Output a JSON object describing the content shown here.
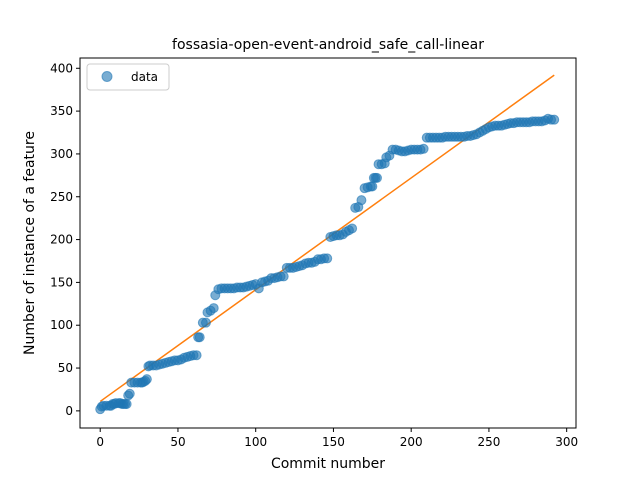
{
  "chart_data": {
    "type": "scatter",
    "title": "fossasia-open-event-android_safe_call-linear",
    "xlabel": "Commit number",
    "ylabel": "Number of instance of a feature",
    "xlim": [
      -13,
      306
    ],
    "ylim": [
      -20,
      412
    ],
    "xticks": [
      0,
      50,
      100,
      150,
      200,
      250,
      300
    ],
    "yticks": [
      0,
      50,
      100,
      150,
      200,
      250,
      300,
      350,
      400
    ],
    "legend": {
      "placement": "top-left",
      "entries": [
        "data"
      ]
    },
    "colors": {
      "points": "#1f77b4",
      "fit": "#ff7f0e"
    },
    "series": [
      {
        "name": "data",
        "kind": "scatter",
        "points": [
          [
            0,
            2
          ],
          [
            1,
            5
          ],
          [
            2,
            6
          ],
          [
            4,
            6
          ],
          [
            6,
            6
          ],
          [
            7,
            6
          ],
          [
            8,
            8
          ],
          [
            9,
            8
          ],
          [
            10,
            9
          ],
          [
            12,
            9
          ],
          [
            13,
            9
          ],
          [
            14,
            8
          ],
          [
            15,
            8
          ],
          [
            16,
            8
          ],
          [
            17,
            8
          ],
          [
            18,
            18
          ],
          [
            19,
            20
          ],
          [
            20,
            33
          ],
          [
            22,
            33
          ],
          [
            24,
            33
          ],
          [
            26,
            33
          ],
          [
            27,
            33
          ],
          [
            28,
            34
          ],
          [
            29,
            35
          ],
          [
            30,
            37
          ],
          [
            31,
            52
          ],
          [
            32,
            53
          ],
          [
            34,
            53
          ],
          [
            36,
            53
          ],
          [
            38,
            54
          ],
          [
            40,
            55
          ],
          [
            42,
            56
          ],
          [
            44,
            57
          ],
          [
            46,
            58
          ],
          [
            48,
            59
          ],
          [
            50,
            59
          ],
          [
            52,
            60
          ],
          [
            54,
            62
          ],
          [
            56,
            63
          ],
          [
            58,
            64
          ],
          [
            60,
            65
          ],
          [
            62,
            65
          ],
          [
            63,
            86
          ],
          [
            64,
            86
          ],
          [
            66,
            103
          ],
          [
            68,
            103
          ],
          [
            69,
            115
          ],
          [
            71,
            117
          ],
          [
            73,
            120
          ],
          [
            74,
            135
          ],
          [
            76,
            142
          ],
          [
            78,
            143
          ],
          [
            80,
            143
          ],
          [
            82,
            143
          ],
          [
            84,
            143
          ],
          [
            86,
            143
          ],
          [
            88,
            144
          ],
          [
            90,
            144
          ],
          [
            92,
            144
          ],
          [
            94,
            145
          ],
          [
            96,
            146
          ],
          [
            98,
            147
          ],
          [
            100,
            148
          ],
          [
            102,
            143
          ],
          [
            104,
            150
          ],
          [
            106,
            151
          ],
          [
            108,
            152
          ],
          [
            110,
            155
          ],
          [
            112,
            155
          ],
          [
            114,
            156
          ],
          [
            116,
            157
          ],
          [
            118,
            157
          ],
          [
            120,
            167
          ],
          [
            122,
            167
          ],
          [
            124,
            167
          ],
          [
            126,
            168
          ],
          [
            128,
            169
          ],
          [
            130,
            170
          ],
          [
            132,
            172
          ],
          [
            134,
            173
          ],
          [
            136,
            173
          ],
          [
            138,
            174
          ],
          [
            140,
            177
          ],
          [
            142,
            177
          ],
          [
            144,
            178
          ],
          [
            146,
            178
          ],
          [
            148,
            203
          ],
          [
            150,
            204
          ],
          [
            152,
            205
          ],
          [
            154,
            205
          ],
          [
            156,
            206
          ],
          [
            158,
            209
          ],
          [
            160,
            211
          ],
          [
            162,
            213
          ],
          [
            164,
            237
          ],
          [
            166,
            238
          ],
          [
            168,
            246
          ],
          [
            170,
            260
          ],
          [
            172,
            261
          ],
          [
            174,
            262
          ],
          [
            175,
            262
          ],
          [
            176,
            272
          ],
          [
            177,
            272
          ],
          [
            178,
            272
          ],
          [
            179,
            288
          ],
          [
            181,
            288
          ],
          [
            183,
            289
          ],
          [
            184,
            296
          ],
          [
            186,
            298
          ],
          [
            188,
            305
          ],
          [
            190,
            305
          ],
          [
            192,
            304
          ],
          [
            194,
            303
          ],
          [
            196,
            303
          ],
          [
            198,
            304
          ],
          [
            200,
            305
          ],
          [
            202,
            305
          ],
          [
            204,
            305
          ],
          [
            206,
            305
          ],
          [
            208,
            306
          ],
          [
            210,
            319
          ],
          [
            212,
            319
          ],
          [
            214,
            319
          ],
          [
            216,
            319
          ],
          [
            218,
            319
          ],
          [
            220,
            319
          ],
          [
            222,
            320
          ],
          [
            224,
            320
          ],
          [
            226,
            320
          ],
          [
            228,
            320
          ],
          [
            230,
            320
          ],
          [
            232,
            320
          ],
          [
            234,
            320
          ],
          [
            236,
            321
          ],
          [
            238,
            321
          ],
          [
            240,
            322
          ],
          [
            242,
            323
          ],
          [
            244,
            325
          ],
          [
            246,
            327
          ],
          [
            248,
            329
          ],
          [
            250,
            331
          ],
          [
            252,
            332
          ],
          [
            254,
            333
          ],
          [
            256,
            333
          ],
          [
            258,
            333
          ],
          [
            260,
            334
          ],
          [
            262,
            335
          ],
          [
            264,
            336
          ],
          [
            266,
            336
          ],
          [
            268,
            337
          ],
          [
            270,
            337
          ],
          [
            272,
            337
          ],
          [
            274,
            337
          ],
          [
            276,
            337
          ],
          [
            278,
            338
          ],
          [
            280,
            338
          ],
          [
            282,
            338
          ],
          [
            284,
            338
          ],
          [
            286,
            339
          ],
          [
            288,
            341
          ],
          [
            290,
            340
          ],
          [
            292,
            340
          ]
        ]
      },
      {
        "kind": "line",
        "points": [
          [
            0,
            11
          ],
          [
            292,
            392
          ]
        ]
      }
    ]
  }
}
